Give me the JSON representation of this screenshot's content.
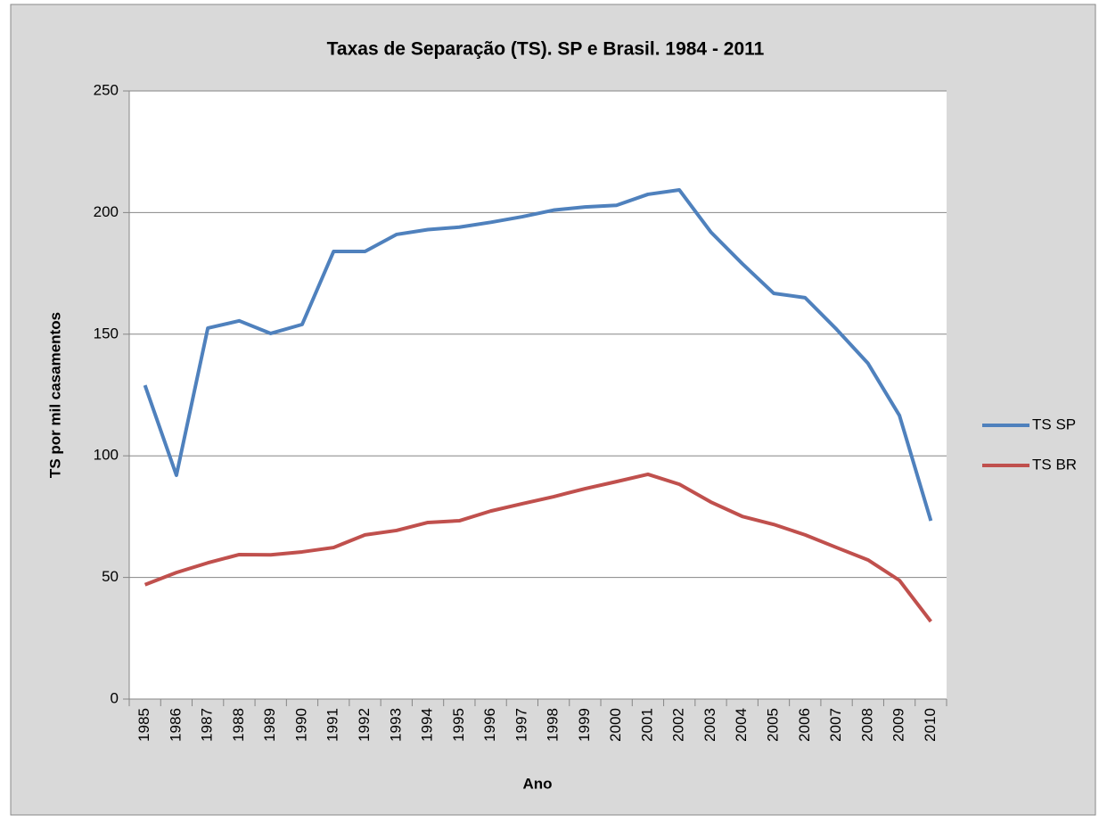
{
  "chart_data": {
    "type": "line",
    "title": "Taxas de Separação (TS). SP e Brasil. 1984 - 2011",
    "x_label": "Ano",
    "y_label": "TS por mil casamentos",
    "categories": [
      "1985",
      "1986",
      "1987",
      "1988",
      "1989",
      "1990",
      "1991",
      "1992",
      "1993",
      "1994",
      "1995",
      "1996",
      "1997",
      "1998",
      "1999",
      "2000",
      "2001",
      "2002",
      "2003",
      "2004",
      "2005",
      "2006",
      "2007",
      "2008",
      "2009",
      "2010"
    ],
    "series": [
      {
        "name": "TS SP",
        "color": "#4f81bd",
        "values": [
          129,
          92,
          152.5,
          155.5,
          150.3,
          154,
          184,
          184,
          191,
          193,
          194,
          196,
          198.3,
          201,
          202.3,
          203,
          207.5,
          209.3,
          192,
          179,
          166.8,
          165,
          152,
          138,
          116.6,
          73.3
        ]
      },
      {
        "name": "TS BR",
        "color": "#c0504d",
        "values": [
          47,
          52,
          56,
          59.4,
          59.3,
          60.5,
          62.3,
          67.5,
          69.3,
          72.6,
          73.3,
          77.3,
          80.3,
          83.2,
          86.5,
          89.4,
          92.4,
          88.3,
          81,
          75.1,
          71.8,
          67.5,
          62.3,
          57.2,
          48.8,
          31.9
        ]
      }
    ],
    "ylim": [
      0,
      250
    ],
    "yticks": [
      0,
      50,
      100,
      150,
      200,
      250
    ],
    "grid": true,
    "legend": "right"
  }
}
